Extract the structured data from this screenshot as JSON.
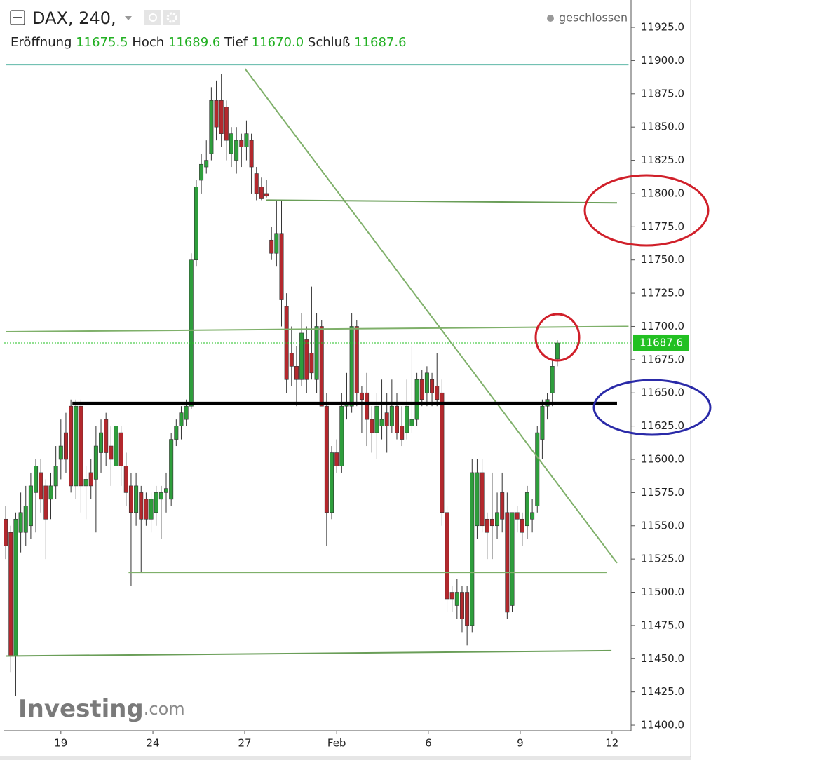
{
  "header": {
    "symbol": "DAX, 240,",
    "status": "geschlossen",
    "fields": [
      {
        "name": "Eröffnung",
        "value": "11675.5"
      },
      {
        "name": "Hoch",
        "value": "11689.6"
      },
      {
        "name": "Tief",
        "value": "11670.0"
      },
      {
        "name": "Schluß",
        "value": "11687.6"
      }
    ],
    "last_price_label": "11687.6"
  },
  "watermark": {
    "brand": "Investing",
    "suffix": ".com"
  },
  "chart_data": {
    "type": "candlestick",
    "up_color": "#2e9e3c",
    "down_color": "#b3282d",
    "xlim": [
      -0.3,
      124.7
    ],
    "ylim": [
      11395.8,
      11945.6
    ],
    "xticks": [
      {
        "value": 11.0,
        "label": "19"
      },
      {
        "value": 29.35,
        "label": "24"
      },
      {
        "value": 47.66,
        "label": "27"
      },
      {
        "value": 66.0,
        "label": "Feb"
      },
      {
        "value": 84.27,
        "label": "6"
      },
      {
        "value": 102.6,
        "label": "9"
      },
      {
        "value": 120.9,
        "label": "12"
      }
    ],
    "yticks": [
      {
        "value": 11400,
        "label": "11400.0"
      },
      {
        "value": 11425,
        "label": "11425.0"
      },
      {
        "value": 11450,
        "label": "11450.0"
      },
      {
        "value": 11475,
        "label": "11475.0"
      },
      {
        "value": 11500,
        "label": "11500.0"
      },
      {
        "value": 11525,
        "label": "11525.0"
      },
      {
        "value": 11550,
        "label": "11550.0"
      },
      {
        "value": 11575,
        "label": "11575.0"
      },
      {
        "value": 11600,
        "label": "11600.0"
      },
      {
        "value": 11625,
        "label": "11625.0"
      },
      {
        "value": 11650,
        "label": "11650.0"
      },
      {
        "value": 11675,
        "label": "11675.0"
      },
      {
        "value": 11700,
        "label": "11700.0"
      },
      {
        "value": 11725,
        "label": "11725.0"
      },
      {
        "value": 11750,
        "label": "11750.0"
      },
      {
        "value": 11775,
        "label": "11775.0"
      },
      {
        "value": 11800,
        "label": "11800.0"
      },
      {
        "value": 11825,
        "label": "11825.0"
      },
      {
        "value": 11850,
        "label": "11850.0"
      },
      {
        "value": 11875,
        "label": "11875.0"
      },
      {
        "value": 11900,
        "label": "11900.0"
      },
      {
        "value": 11925,
        "label": "11925.0"
      }
    ],
    "candles": {
      "open": [
        11555,
        11545,
        11452,
        11545,
        11545,
        11550,
        11575,
        11590,
        11580,
        11570,
        11580,
        11600,
        11620,
        11640,
        11580,
        11640,
        11580,
        11590,
        11585,
        11605,
        11630,
        11610,
        11595,
        11620,
        11595,
        11580,
        11560,
        11575,
        11570,
        11555,
        11560,
        11570,
        11575,
        11570,
        11615,
        11625,
        11630,
        11640,
        11750,
        11810,
        11820,
        11830,
        11870,
        11870,
        11865,
        11830,
        11825,
        11840,
        11835,
        11840,
        11815,
        11805,
        11800,
        11765,
        11755,
        11770,
        11715,
        11680,
        11670,
        11660,
        11690,
        11680,
        11660,
        11700,
        11640,
        11560,
        11605,
        11595,
        11640,
        11640,
        11700,
        11650,
        11650,
        11630,
        11620,
        11625,
        11635,
        11625,
        11640,
        11625,
        11620,
        11625,
        11630,
        11660,
        11650,
        11660,
        11655,
        11650,
        11560,
        11500,
        11490,
        11500,
        11500,
        11475,
        11550,
        11590,
        11555,
        11555,
        11550,
        11575,
        11560,
        11490,
        11560,
        11555,
        11550,
        11555,
        11565,
        11615,
        11640,
        11650,
        11675.5
      ],
      "high": [
        11565,
        11550,
        11560,
        11575,
        11580,
        11590,
        11600,
        11600,
        11585,
        11590,
        11610,
        11630,
        11635,
        11645,
        11645,
        11645,
        11595,
        11600,
        11625,
        11630,
        11635,
        11625,
        11630,
        11625,
        11605,
        11590,
        11590,
        11580,
        11575,
        11575,
        11580,
        11580,
        11590,
        11620,
        11630,
        11640,
        11645,
        11755,
        11810,
        11830,
        11840,
        11880,
        11885,
        11890,
        11870,
        11850,
        11850,
        11845,
        11855,
        11845,
        11820,
        11812,
        11810,
        11775,
        11795,
        11795,
        11725,
        11700,
        11685,
        11710,
        11700,
        11730,
        11710,
        11705,
        11650,
        11610,
        11615,
        11650,
        11665,
        11710,
        11705,
        11655,
        11665,
        11640,
        11650,
        11660,
        11650,
        11660,
        11650,
        11640,
        11660,
        11685,
        11665,
        11667,
        11670,
        11665,
        11680,
        11660,
        11565,
        11505,
        11510,
        11505,
        11505,
        11600,
        11600,
        11600,
        11560,
        11590,
        11575,
        11590,
        11575,
        11560,
        11565,
        11560,
        11580,
        11570,
        11625,
        11645,
        11650,
        11675,
        11689.6
      ],
      "low": [
        11525,
        11440,
        11422,
        11530,
        11535,
        11540,
        11545,
        11560,
        11525,
        11555,
        11570,
        11585,
        11590,
        11575,
        11570,
        11560,
        11555,
        11570,
        11545,
        11590,
        11595,
        11580,
        11585,
        11580,
        11565,
        11505,
        11550,
        11515,
        11550,
        11545,
        11550,
        11540,
        11560,
        11565,
        11610,
        11615,
        11625,
        11638,
        11745,
        11800,
        11815,
        11825,
        11840,
        11835,
        11825,
        11820,
        11815,
        11820,
        11825,
        11800,
        11795,
        11795,
        11797,
        11750,
        11745,
        11700,
        11650,
        11655,
        11640,
        11655,
        11650,
        11660,
        11650,
        11640,
        11535,
        11555,
        11590,
        11590,
        11630,
        11635,
        11640,
        11620,
        11610,
        11605,
        11600,
        11615,
        11605,
        11620,
        11615,
        11610,
        11615,
        11620,
        11625,
        11640,
        11640,
        11640,
        11640,
        11550,
        11485,
        11485,
        11480,
        11470,
        11460,
        11470,
        11540,
        11545,
        11525,
        11525,
        11540,
        11545,
        11480,
        11485,
        11545,
        11535,
        11540,
        11545,
        11560,
        11600,
        11630,
        11640,
        11670.0
      ],
      "close": [
        11535,
        11452,
        11555,
        11560,
        11565,
        11580,
        11595,
        11570,
        11555,
        11580,
        11595,
        11610,
        11600,
        11580,
        11640,
        11580,
        11585,
        11580,
        11610,
        11620,
        11605,
        11600,
        11625,
        11595,
        11575,
        11560,
        11580,
        11555,
        11555,
        11570,
        11575,
        11575,
        11578,
        11615,
        11625,
        11635,
        11640,
        11750,
        11805,
        11822,
        11825,
        11870,
        11850,
        11845,
        11840,
        11845,
        11840,
        11835,
        11845,
        11820,
        11800,
        11796,
        11798,
        11755,
        11770,
        11720,
        11660,
        11670,
        11660,
        11695,
        11660,
        11665,
        11700,
        11640,
        11560,
        11605,
        11595,
        11640,
        11642,
        11700,
        11650,
        11645,
        11630,
        11620,
        11640,
        11630,
        11625,
        11640,
        11620,
        11615,
        11640,
        11630,
        11660,
        11645,
        11665,
        11650,
        11645,
        11560,
        11495,
        11495,
        11500,
        11480,
        11475,
        11590,
        11590,
        11550,
        11545,
        11550,
        11560,
        11555,
        11485,
        11560,
        11555,
        11545,
        11575,
        11560,
        11620,
        11640,
        11645,
        11670,
        11687.6
      ]
    },
    "lines": [
      {
        "x": [
          0,
          124.2
        ],
        "y": [
          11897,
          11897
        ],
        "color": "#5fb8a8"
      },
      {
        "x": [
          47.7,
          121.9
        ],
        "y": [
          11894,
          11522
        ],
        "color": "#7fb06a"
      },
      {
        "x": [
          51.9,
          121.9
        ],
        "y": [
          11795,
          11793
        ],
        "color": "#6a9e58"
      },
      {
        "x": [
          0,
          124.2
        ],
        "y": [
          11696,
          11700
        ],
        "color": "#7fb06a"
      },
      {
        "x": [
          13.3,
          121.9
        ],
        "y": [
          11642,
          11642
        ],
        "color": "#000000",
        "style": "bold"
      },
      {
        "x": [
          24.5,
          119.8
        ],
        "y": [
          11515,
          11515
        ],
        "color": "#7fb06a"
      },
      {
        "x": [
          0,
          120.8
        ],
        "y": [
          11452,
          11456
        ],
        "color": "#6a9e58"
      }
    ]
  }
}
